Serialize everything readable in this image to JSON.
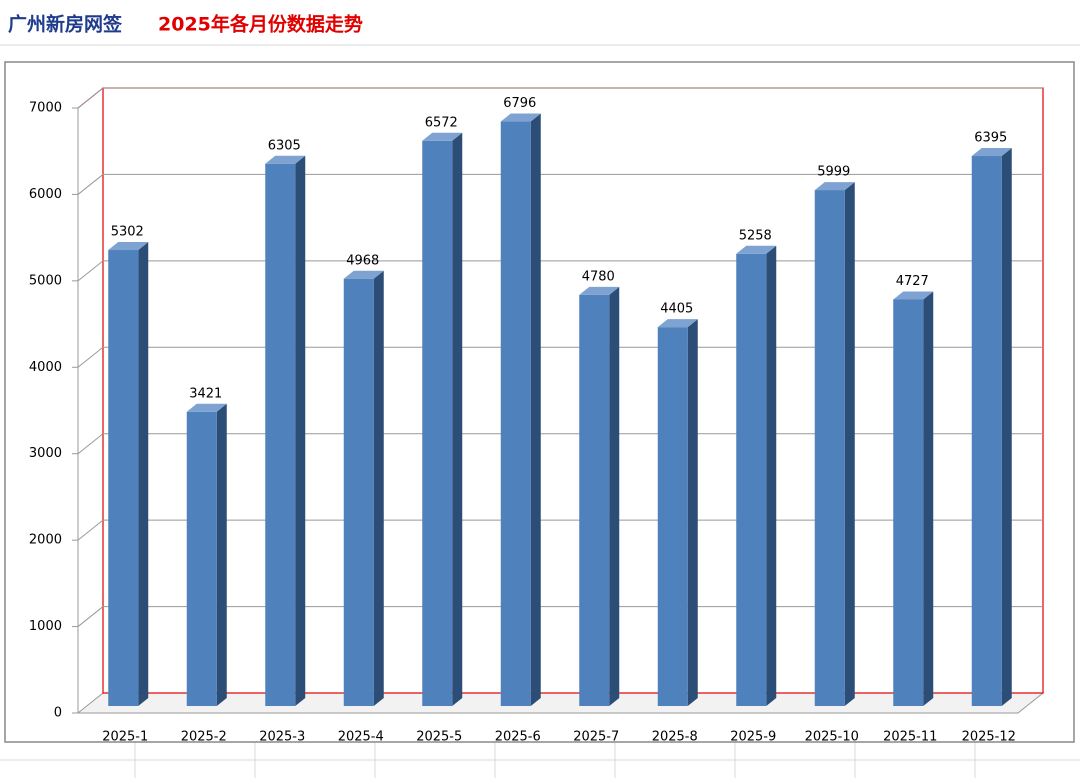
{
  "chart_data": {
    "type": "bar3d",
    "title": "广州新房网签",
    "subtitle": "2025年各月份数据走势",
    "categories": [
      "2025-1",
      "2025-2",
      "2025-3",
      "2025-4",
      "2025-5",
      "2025-6",
      "2025-7",
      "2025-8",
      "2025-9",
      "2025-10",
      "2025-11",
      "2025-12"
    ],
    "values": [
      5302,
      3421,
      6305,
      4968,
      6572,
      6796,
      4780,
      4405,
      5258,
      5999,
      4727,
      6395
    ],
    "color": "#4f81bd",
    "ylim": [
      0,
      7000
    ],
    "yticks": [
      0,
      1000,
      2000,
      3000,
      4000,
      5000,
      6000,
      7000
    ],
    "grid": true
  }
}
